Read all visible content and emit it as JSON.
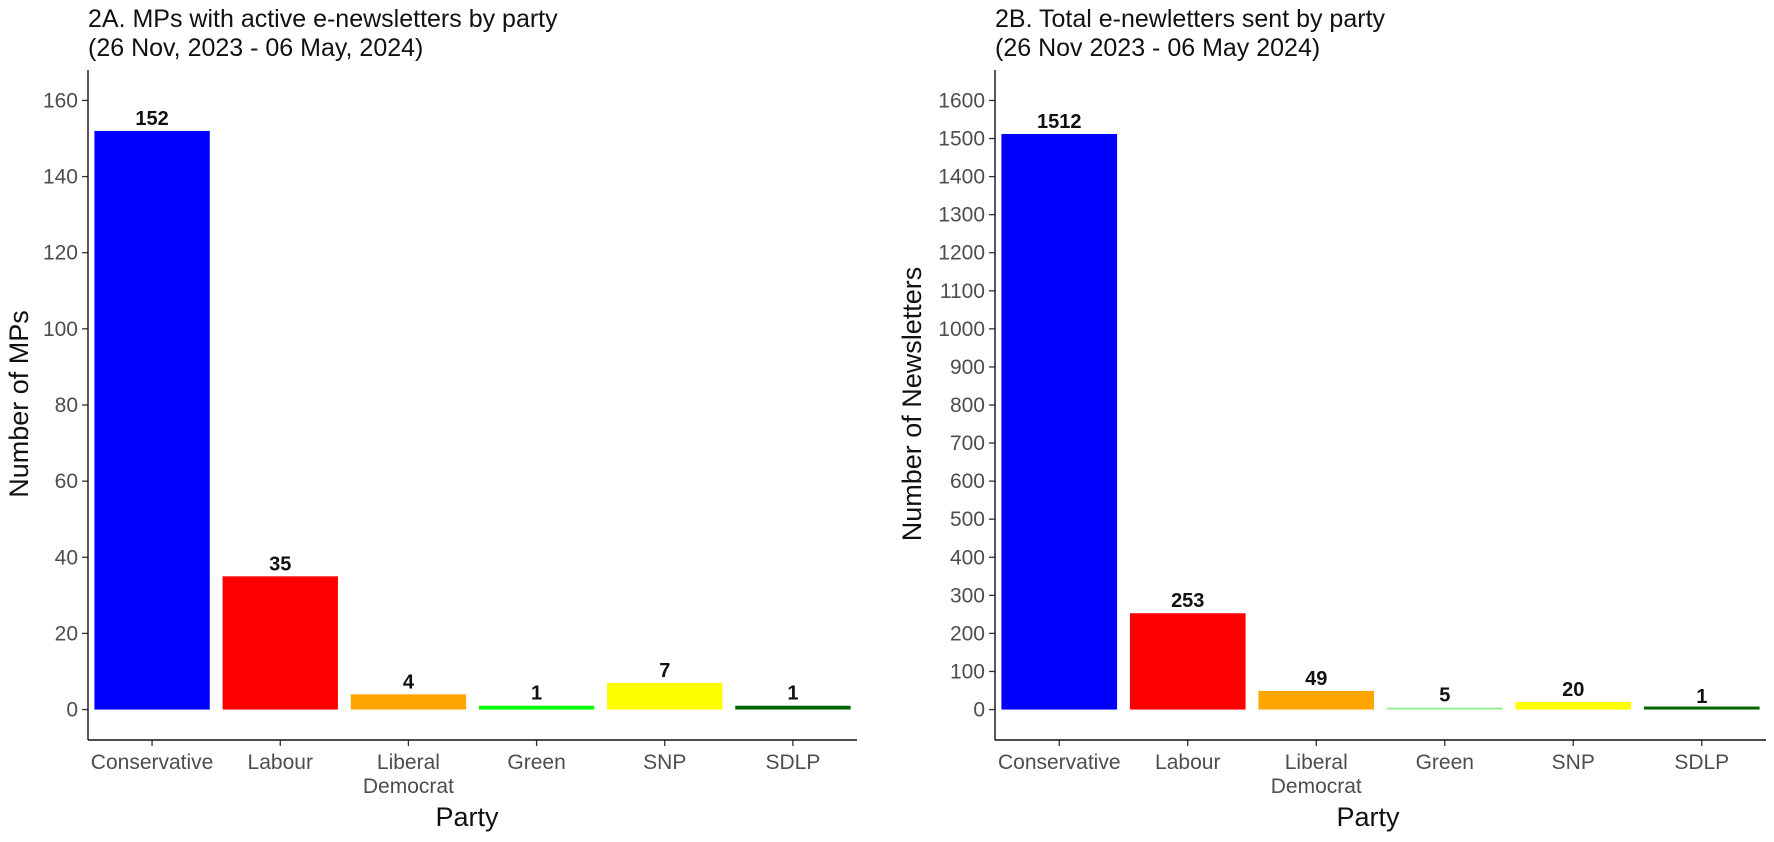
{
  "chart_data": [
    {
      "type": "bar",
      "title_lines": [
        "2A. MPs with active e-newsletters by party",
        "(26 Nov, 2023 - 06 May, 2024)"
      ],
      "xlabel": "Party",
      "ylabel": "Number of MPs",
      "categories": [
        [
          "Conservative"
        ],
        [
          "Labour"
        ],
        [
          "Liberal",
          "Democrat"
        ],
        [
          "Green"
        ],
        [
          "SNP"
        ],
        [
          "SDLP"
        ]
      ],
      "values": [
        152,
        35,
        4,
        1,
        7,
        1
      ],
      "colors": [
        "#0000ff",
        "#ff0000",
        "#ffa500",
        "#00ff00",
        "#ffff00",
        "#006400"
      ],
      "ylim": [
        -8,
        168
      ],
      "yticks": [
        0,
        20,
        40,
        60,
        80,
        100,
        120,
        140,
        160
      ],
      "grid": false,
      "legend": "none"
    },
    {
      "type": "bar",
      "title_lines": [
        "2B. Total e-newletters sent by party",
        "(26 Nov 2023 - 06 May 2024)"
      ],
      "xlabel": "Party",
      "ylabel": "Number of Newsletters",
      "categories": [
        [
          "Conservative"
        ],
        [
          "Labour"
        ],
        [
          "Liberal",
          "Democrat"
        ],
        [
          "Green"
        ],
        [
          "SNP"
        ],
        [
          "SDLP"
        ]
      ],
      "values": [
        1512,
        253,
        49,
        5,
        20,
        1
      ],
      "colors": [
        "#0000ff",
        "#ff0000",
        "#ffa500",
        "#90ee90",
        "#ffff00",
        "#006400"
      ],
      "ylim": [
        -80,
        1680
      ],
      "yticks": [
        0,
        100,
        200,
        300,
        400,
        500,
        600,
        700,
        800,
        900,
        1000,
        1100,
        1200,
        1300,
        1400,
        1500,
        1600
      ],
      "grid": false,
      "legend": "none"
    }
  ]
}
